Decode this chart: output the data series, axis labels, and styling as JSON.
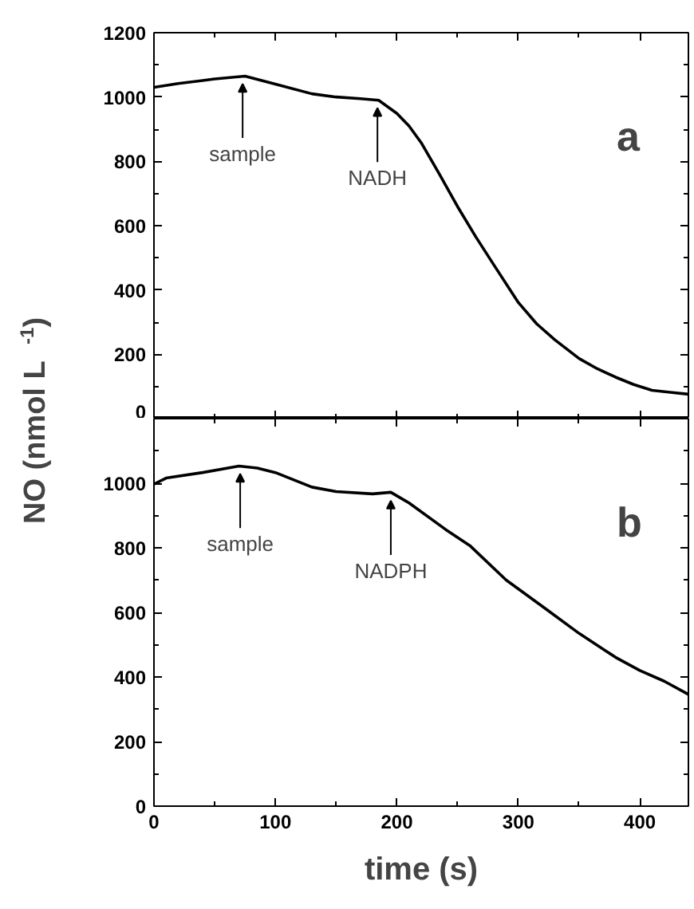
{
  "chart_data": [
    {
      "type": "line",
      "ylabel": "NO (nmol L$^{-1}$)",
      "x": [
        0,
        20,
        50,
        75,
        100,
        130,
        150,
        170,
        185,
        200,
        210,
        220,
        235,
        250,
        265,
        280,
        300,
        315,
        330,
        350,
        365,
        380,
        395,
        410,
        425,
        440
      ],
      "series": [
        {
          "color": "#000000",
          "values": [
            1030,
            1042,
            1056,
            1065,
            1040,
            1010,
            1000,
            995,
            990,
            949,
            910,
            858,
            760,
            659,
            565,
            477,
            361,
            295,
            245,
            187,
            155,
            129,
            106,
            88,
            82,
            76
          ]
        }
      ],
      "xlim": [
        0,
        440
      ],
      "ylim": [
        0,
        1200
      ],
      "xticks": [
        0,
        100,
        200,
        300,
        400
      ],
      "yticks": [
        0,
        200,
        400,
        600,
        800,
        1000,
        1200
      ],
      "tick_labels": "y",
      "grid": false,
      "line_style": "solid",
      "marker": "none",
      "annotations": [
        "a",
        {
          "text": "sample",
          "x": 73,
          "y": 1065
        },
        {
          "text": "NADH",
          "x": 184,
          "y": 990
        }
      ]
    },
    {
      "type": "line",
      "xlabel": "time (s)",
      "x": [
        0,
        10,
        40,
        70,
        85,
        100,
        130,
        150,
        180,
        195,
        210,
        240,
        260,
        290,
        320,
        350,
        380,
        400,
        420,
        440
      ],
      "series": [
        {
          "color": "#000000",
          "values": [
            997,
            1016,
            1033,
            1053,
            1047,
            1033,
            988,
            974,
            967,
            972,
            939,
            857,
            807,
            700,
            618,
            535,
            461,
            420,
            387,
            346
          ]
        }
      ],
      "xlim": [
        0,
        440
      ],
      "ylim": [
        0,
        1200
      ],
      "xticks": [
        0,
        100,
        200,
        300,
        400
      ],
      "yticks": [
        0,
        200,
        400,
        600,
        800,
        1000
      ],
      "grid": false,
      "line_style": "solid",
      "marker": "none",
      "annotations": [
        "b",
        {
          "text": "sample",
          "x": 71,
          "y": 1053
        },
        {
          "text": "NADPH",
          "x": 195,
          "y": 970
        }
      ]
    }
  ]
}
